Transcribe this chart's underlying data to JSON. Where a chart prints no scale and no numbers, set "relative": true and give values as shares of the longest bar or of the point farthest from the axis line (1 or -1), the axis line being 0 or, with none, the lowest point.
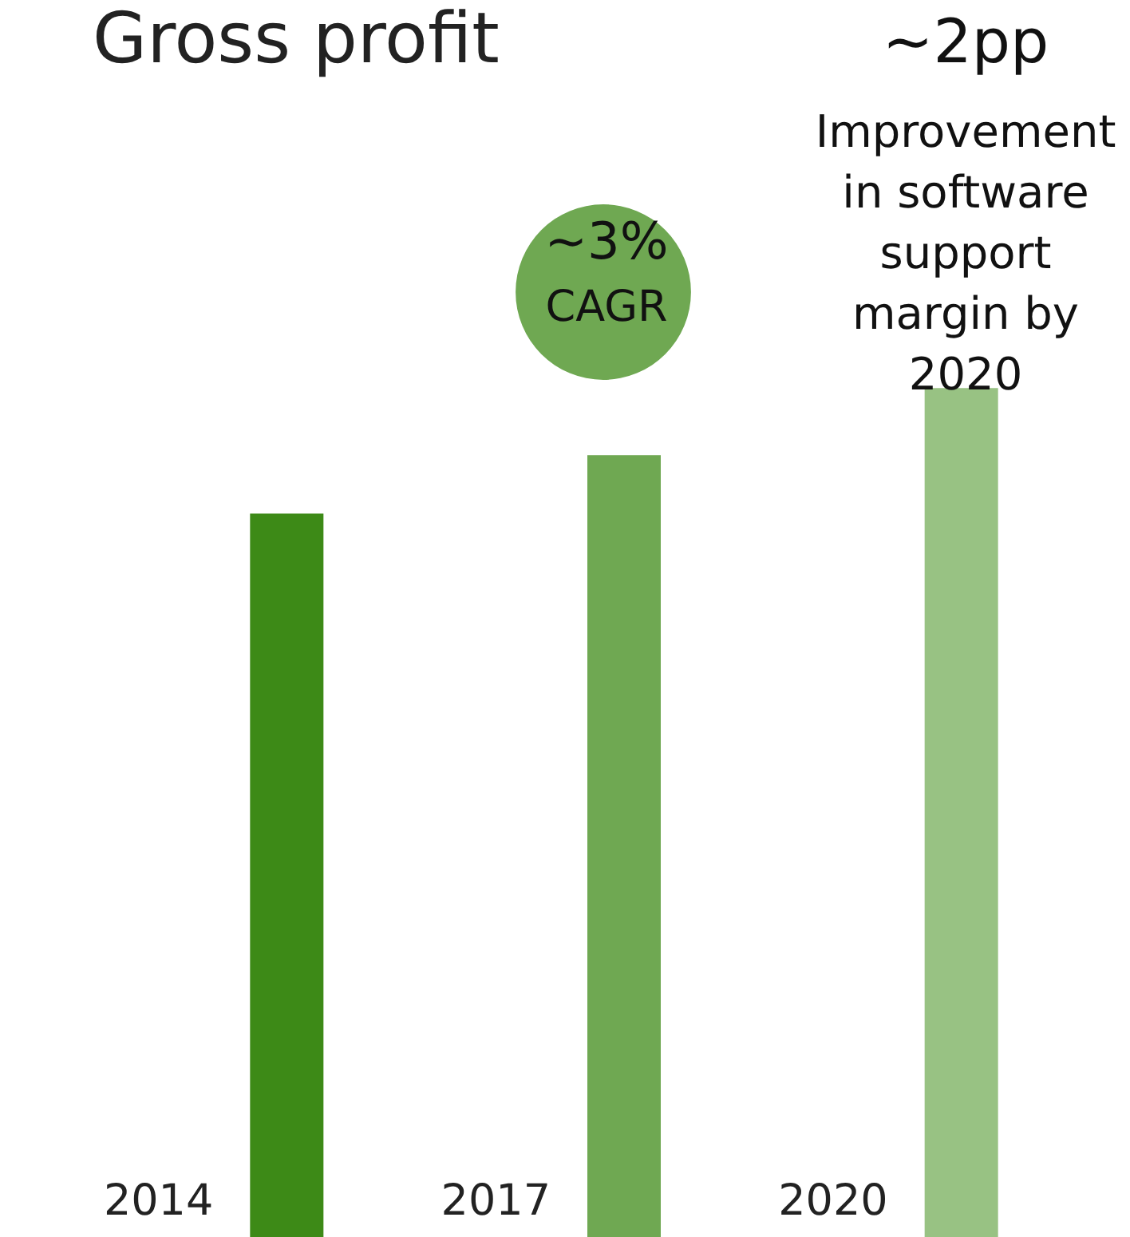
{
  "chart_data": {
    "type": "bar",
    "title": "Gross profit",
    "relative": true,
    "categories": [
      "2014",
      "2017",
      "2020"
    ],
    "values": [
      0.852,
      0.921,
      1
    ],
    "colors": [
      "#3d8a17",
      "#6fa852",
      "#98c283"
    ],
    "annotations": [
      "~3%",
      "CAGR",
      "~2pp",
      "Improvement\nin software\nsupport\nmargin by\n2020"
    ]
  }
}
